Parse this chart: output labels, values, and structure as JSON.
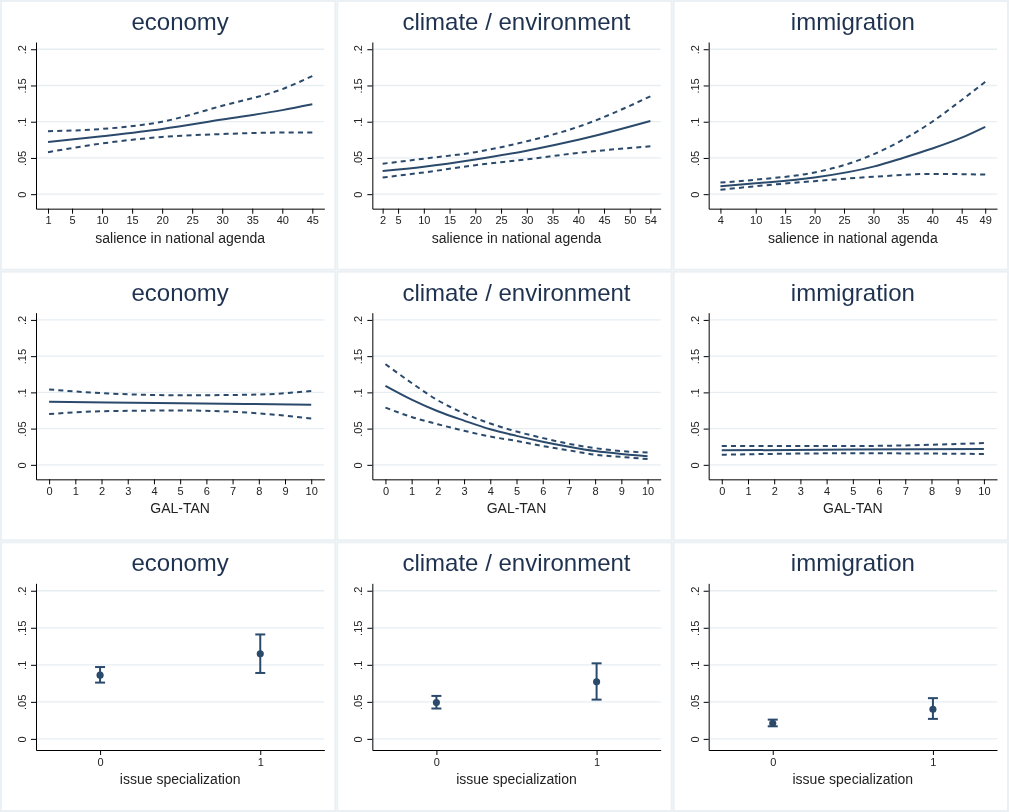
{
  "chart_data": [
    {
      "type": "line",
      "title": "economy",
      "xlabel": "salience in national agenda",
      "xlim": [
        -1,
        47
      ],
      "xticks": [
        1,
        5,
        10,
        15,
        20,
        25,
        30,
        35,
        40,
        45
      ],
      "ylim": [
        -0.02,
        0.21
      ],
      "yticks": [
        {
          "value": 0,
          "label": "0"
        },
        {
          "value": 0.05,
          "label": ".05"
        },
        {
          "value": 0.1,
          "label": ".1"
        },
        {
          "value": 0.15,
          "label": ".15"
        },
        {
          "value": 0.2,
          "label": ".2"
        }
      ],
      "grid": "y",
      "series": [
        {
          "color": "#2b4a6b",
          "line_style": "dashed",
          "x": [
            1,
            10,
            20,
            30,
            40,
            45
          ],
          "values": [
            0.087,
            0.09,
            0.1,
            0.122,
            0.145,
            0.163
          ]
        },
        {
          "color": "#2b4a6b",
          "line_style": "solid",
          "x": [
            1,
            10,
            20,
            30,
            40,
            45
          ],
          "values": [
            0.072,
            0.08,
            0.09,
            0.103,
            0.116,
            0.124
          ]
        },
        {
          "color": "#2b4a6b",
          "line_style": "dashed",
          "x": [
            1,
            10,
            20,
            30,
            40,
            45
          ],
          "values": [
            0.058,
            0.07,
            0.079,
            0.083,
            0.085,
            0.085
          ]
        }
      ]
    },
    {
      "type": "line",
      "title": "climate / environment",
      "xlabel": "salience in national agenda",
      "xlim": [
        0,
        56
      ],
      "xticks": [
        2,
        5,
        10,
        15,
        20,
        25,
        30,
        35,
        40,
        45,
        50,
        54
      ],
      "ylim": [
        -0.02,
        0.21
      ],
      "yticks": [
        {
          "value": 0,
          "label": "0"
        },
        {
          "value": 0.05,
          "label": ".05"
        },
        {
          "value": 0.1,
          "label": ".1"
        },
        {
          "value": 0.15,
          "label": ".15"
        },
        {
          "value": 0.2,
          "label": ".2"
        }
      ],
      "grid": "y",
      "series": [
        {
          "color": "#2b4a6b",
          "line_style": "dashed",
          "x": [
            2,
            10,
            20,
            30,
            40,
            54
          ],
          "values": [
            0.042,
            0.049,
            0.058,
            0.073,
            0.093,
            0.135
          ]
        },
        {
          "color": "#2b4a6b",
          "line_style": "solid",
          "x": [
            2,
            10,
            20,
            30,
            40,
            54
          ],
          "values": [
            0.032,
            0.038,
            0.048,
            0.06,
            0.075,
            0.101
          ]
        },
        {
          "color": "#2b4a6b",
          "line_style": "dashed",
          "x": [
            2,
            10,
            20,
            30,
            40,
            54
          ],
          "values": [
            0.023,
            0.03,
            0.04,
            0.048,
            0.057,
            0.066
          ]
        }
      ]
    },
    {
      "type": "line",
      "title": "immigration",
      "xlabel": "salience in national agenda",
      "xlim": [
        2,
        51
      ],
      "xticks": [
        4,
        10,
        15,
        20,
        25,
        30,
        35,
        40,
        45,
        49
      ],
      "ylim": [
        -0.02,
        0.21
      ],
      "yticks": [
        {
          "value": 0,
          "label": "0"
        },
        {
          "value": 0.05,
          "label": ".05"
        },
        {
          "value": 0.1,
          "label": ".1"
        },
        {
          "value": 0.15,
          "label": ".15"
        },
        {
          "value": 0.2,
          "label": ".2"
        }
      ],
      "grid": "y",
      "series": [
        {
          "color": "#2b4a6b",
          "line_style": "dashed",
          "x": [
            4,
            10,
            20,
            25,
            30,
            35,
            40,
            45,
            49
          ],
          "values": [
            0.016,
            0.02,
            0.03,
            0.04,
            0.055,
            0.075,
            0.1,
            0.13,
            0.155
          ]
        },
        {
          "color": "#2b4a6b",
          "line_style": "solid",
          "x": [
            4,
            10,
            20,
            30,
            35,
            40,
            45,
            49
          ],
          "values": [
            0.011,
            0.015,
            0.023,
            0.038,
            0.05,
            0.063,
            0.078,
            0.093
          ]
        },
        {
          "color": "#2b4a6b",
          "line_style": "dashed",
          "x": [
            4,
            10,
            20,
            30,
            40,
            49
          ],
          "values": [
            0.006,
            0.011,
            0.018,
            0.024,
            0.028,
            0.027
          ]
        }
      ]
    },
    {
      "type": "line",
      "title": "economy",
      "xlabel": "GAL-TAN",
      "xlim": [
        -0.5,
        10.5
      ],
      "xticks": [
        0,
        1,
        2,
        3,
        4,
        5,
        6,
        7,
        8,
        9,
        10
      ],
      "ylim": [
        -0.02,
        0.21
      ],
      "yticks": [
        {
          "value": 0,
          "label": "0"
        },
        {
          "value": 0.05,
          "label": ".05"
        },
        {
          "value": 0.1,
          "label": ".1"
        },
        {
          "value": 0.15,
          "label": ".15"
        },
        {
          "value": 0.2,
          "label": ".2"
        }
      ],
      "grid": "y",
      "series": [
        {
          "color": "#2b4a6b",
          "line_style": "dashed",
          "x": [
            0,
            2,
            5,
            8,
            10
          ],
          "values": [
            0.104,
            0.099,
            0.096,
            0.097,
            0.102
          ]
        },
        {
          "color": "#2b4a6b",
          "line_style": "solid",
          "x": [
            0,
            5,
            10
          ],
          "values": [
            0.087,
            0.085,
            0.083
          ]
        },
        {
          "color": "#2b4a6b",
          "line_style": "dashed",
          "x": [
            0,
            2,
            5,
            8,
            10
          ],
          "values": [
            0.07,
            0.074,
            0.075,
            0.071,
            0.064
          ]
        }
      ]
    },
    {
      "type": "line",
      "title": "climate / environment",
      "xlabel": "GAL-TAN",
      "xlim": [
        -0.5,
        10.5
      ],
      "xticks": [
        0,
        1,
        2,
        3,
        4,
        5,
        6,
        7,
        8,
        9,
        10
      ],
      "ylim": [
        -0.02,
        0.21
      ],
      "yticks": [
        {
          "value": 0,
          "label": "0"
        },
        {
          "value": 0.05,
          "label": ".05"
        },
        {
          "value": 0.1,
          "label": ".1"
        },
        {
          "value": 0.15,
          "label": ".15"
        },
        {
          "value": 0.2,
          "label": ".2"
        }
      ],
      "grid": "y",
      "series": [
        {
          "color": "#2b4a6b",
          "line_style": "dashed",
          "x": [
            0,
            1,
            2,
            3,
            4,
            5,
            6,
            7,
            8,
            9,
            10
          ],
          "values": [
            0.139,
            0.113,
            0.089,
            0.071,
            0.057,
            0.046,
            0.037,
            0.029,
            0.023,
            0.019,
            0.017
          ]
        },
        {
          "color": "#2b4a6b",
          "line_style": "solid",
          "x": [
            0,
            1,
            2,
            3,
            4,
            5,
            6,
            7,
            8,
            9,
            10
          ],
          "values": [
            0.109,
            0.09,
            0.074,
            0.061,
            0.049,
            0.04,
            0.032,
            0.025,
            0.019,
            0.015,
            0.012
          ]
        },
        {
          "color": "#2b4a6b",
          "line_style": "dashed",
          "x": [
            0,
            1,
            2,
            3,
            4,
            5,
            6,
            7,
            8,
            9,
            10
          ],
          "values": [
            0.079,
            0.066,
            0.056,
            0.047,
            0.039,
            0.033,
            0.026,
            0.02,
            0.014,
            0.011,
            0.008
          ]
        }
      ]
    },
    {
      "type": "line",
      "title": "immigration",
      "xlabel": "GAL-TAN",
      "xlim": [
        -0.5,
        10.5
      ],
      "xticks": [
        0,
        1,
        2,
        3,
        4,
        5,
        6,
        7,
        8,
        9,
        10
      ],
      "ylim": [
        -0.02,
        0.21
      ],
      "yticks": [
        {
          "value": 0,
          "label": "0"
        },
        {
          "value": 0.05,
          "label": ".05"
        },
        {
          "value": 0.1,
          "label": ".1"
        },
        {
          "value": 0.15,
          "label": ".15"
        },
        {
          "value": 0.2,
          "label": ".2"
        }
      ],
      "grid": "y",
      "series": [
        {
          "color": "#2b4a6b",
          "line_style": "dashed",
          "x": [
            0,
            5,
            10
          ],
          "values": [
            0.026,
            0.026,
            0.03
          ]
        },
        {
          "color": "#2b4a6b",
          "line_style": "solid",
          "x": [
            0,
            5,
            10
          ],
          "values": [
            0.02,
            0.021,
            0.022
          ]
        },
        {
          "color": "#2b4a6b",
          "line_style": "dashed",
          "x": [
            0,
            5,
            10
          ],
          "values": [
            0.014,
            0.016,
            0.015
          ]
        }
      ]
    },
    {
      "type": "scatter",
      "title": "economy",
      "xlabel": "issue specialization",
      "xlim": [
        -0.4,
        1.4
      ],
      "xticks": [
        0,
        1
      ],
      "ylim": [
        -0.015,
        0.21
      ],
      "yticks": [
        {
          "value": 0,
          "label": "0"
        },
        {
          "value": 0.05,
          "label": ".05"
        },
        {
          "value": 0.1,
          "label": ".1"
        },
        {
          "value": 0.15,
          "label": ".15"
        },
        {
          "value": 0.2,
          "label": ".2"
        }
      ],
      "grid": "y",
      "marker": "circle",
      "series": [
        {
          "color": "#2b4a6b",
          "x": [
            0,
            1
          ],
          "values": [
            0.086,
            0.115
          ],
          "errors": [
            [
              0.076,
              0.097
            ],
            [
              0.089,
              0.141
            ]
          ]
        }
      ]
    },
    {
      "type": "scatter",
      "title": "climate / environment",
      "xlabel": "issue specialization",
      "xlim": [
        -0.4,
        1.4
      ],
      "xticks": [
        0,
        1
      ],
      "ylim": [
        -0.015,
        0.21
      ],
      "yticks": [
        {
          "value": 0,
          "label": "0"
        },
        {
          "value": 0.05,
          "label": ".05"
        },
        {
          "value": 0.1,
          "label": ".1"
        },
        {
          "value": 0.15,
          "label": ".15"
        },
        {
          "value": 0.2,
          "label": ".2"
        }
      ],
      "grid": "y",
      "marker": "circle",
      "series": [
        {
          "color": "#2b4a6b",
          "x": [
            0,
            1
          ],
          "values": [
            0.049,
            0.077
          ],
          "errors": [
            [
              0.041,
              0.058
            ],
            [
              0.053,
              0.102
            ]
          ]
        }
      ]
    },
    {
      "type": "scatter",
      "title": "immigration",
      "xlabel": "issue specialization",
      "xlim": [
        -0.4,
        1.4
      ],
      "xticks": [
        0,
        1
      ],
      "ylim": [
        -0.015,
        0.21
      ],
      "yticks": [
        {
          "value": 0,
          "label": "0"
        },
        {
          "value": 0.05,
          "label": ".05"
        },
        {
          "value": 0.1,
          "label": ".1"
        },
        {
          "value": 0.15,
          "label": ".15"
        },
        {
          "value": 0.2,
          "label": ".2"
        }
      ],
      "grid": "y",
      "marker": "circle",
      "series": [
        {
          "color": "#2b4a6b",
          "x": [
            0,
            1
          ],
          "values": [
            0.021,
            0.04
          ],
          "errors": [
            [
              0.017,
              0.026
            ],
            [
              0.027,
              0.055
            ]
          ]
        }
      ]
    }
  ]
}
